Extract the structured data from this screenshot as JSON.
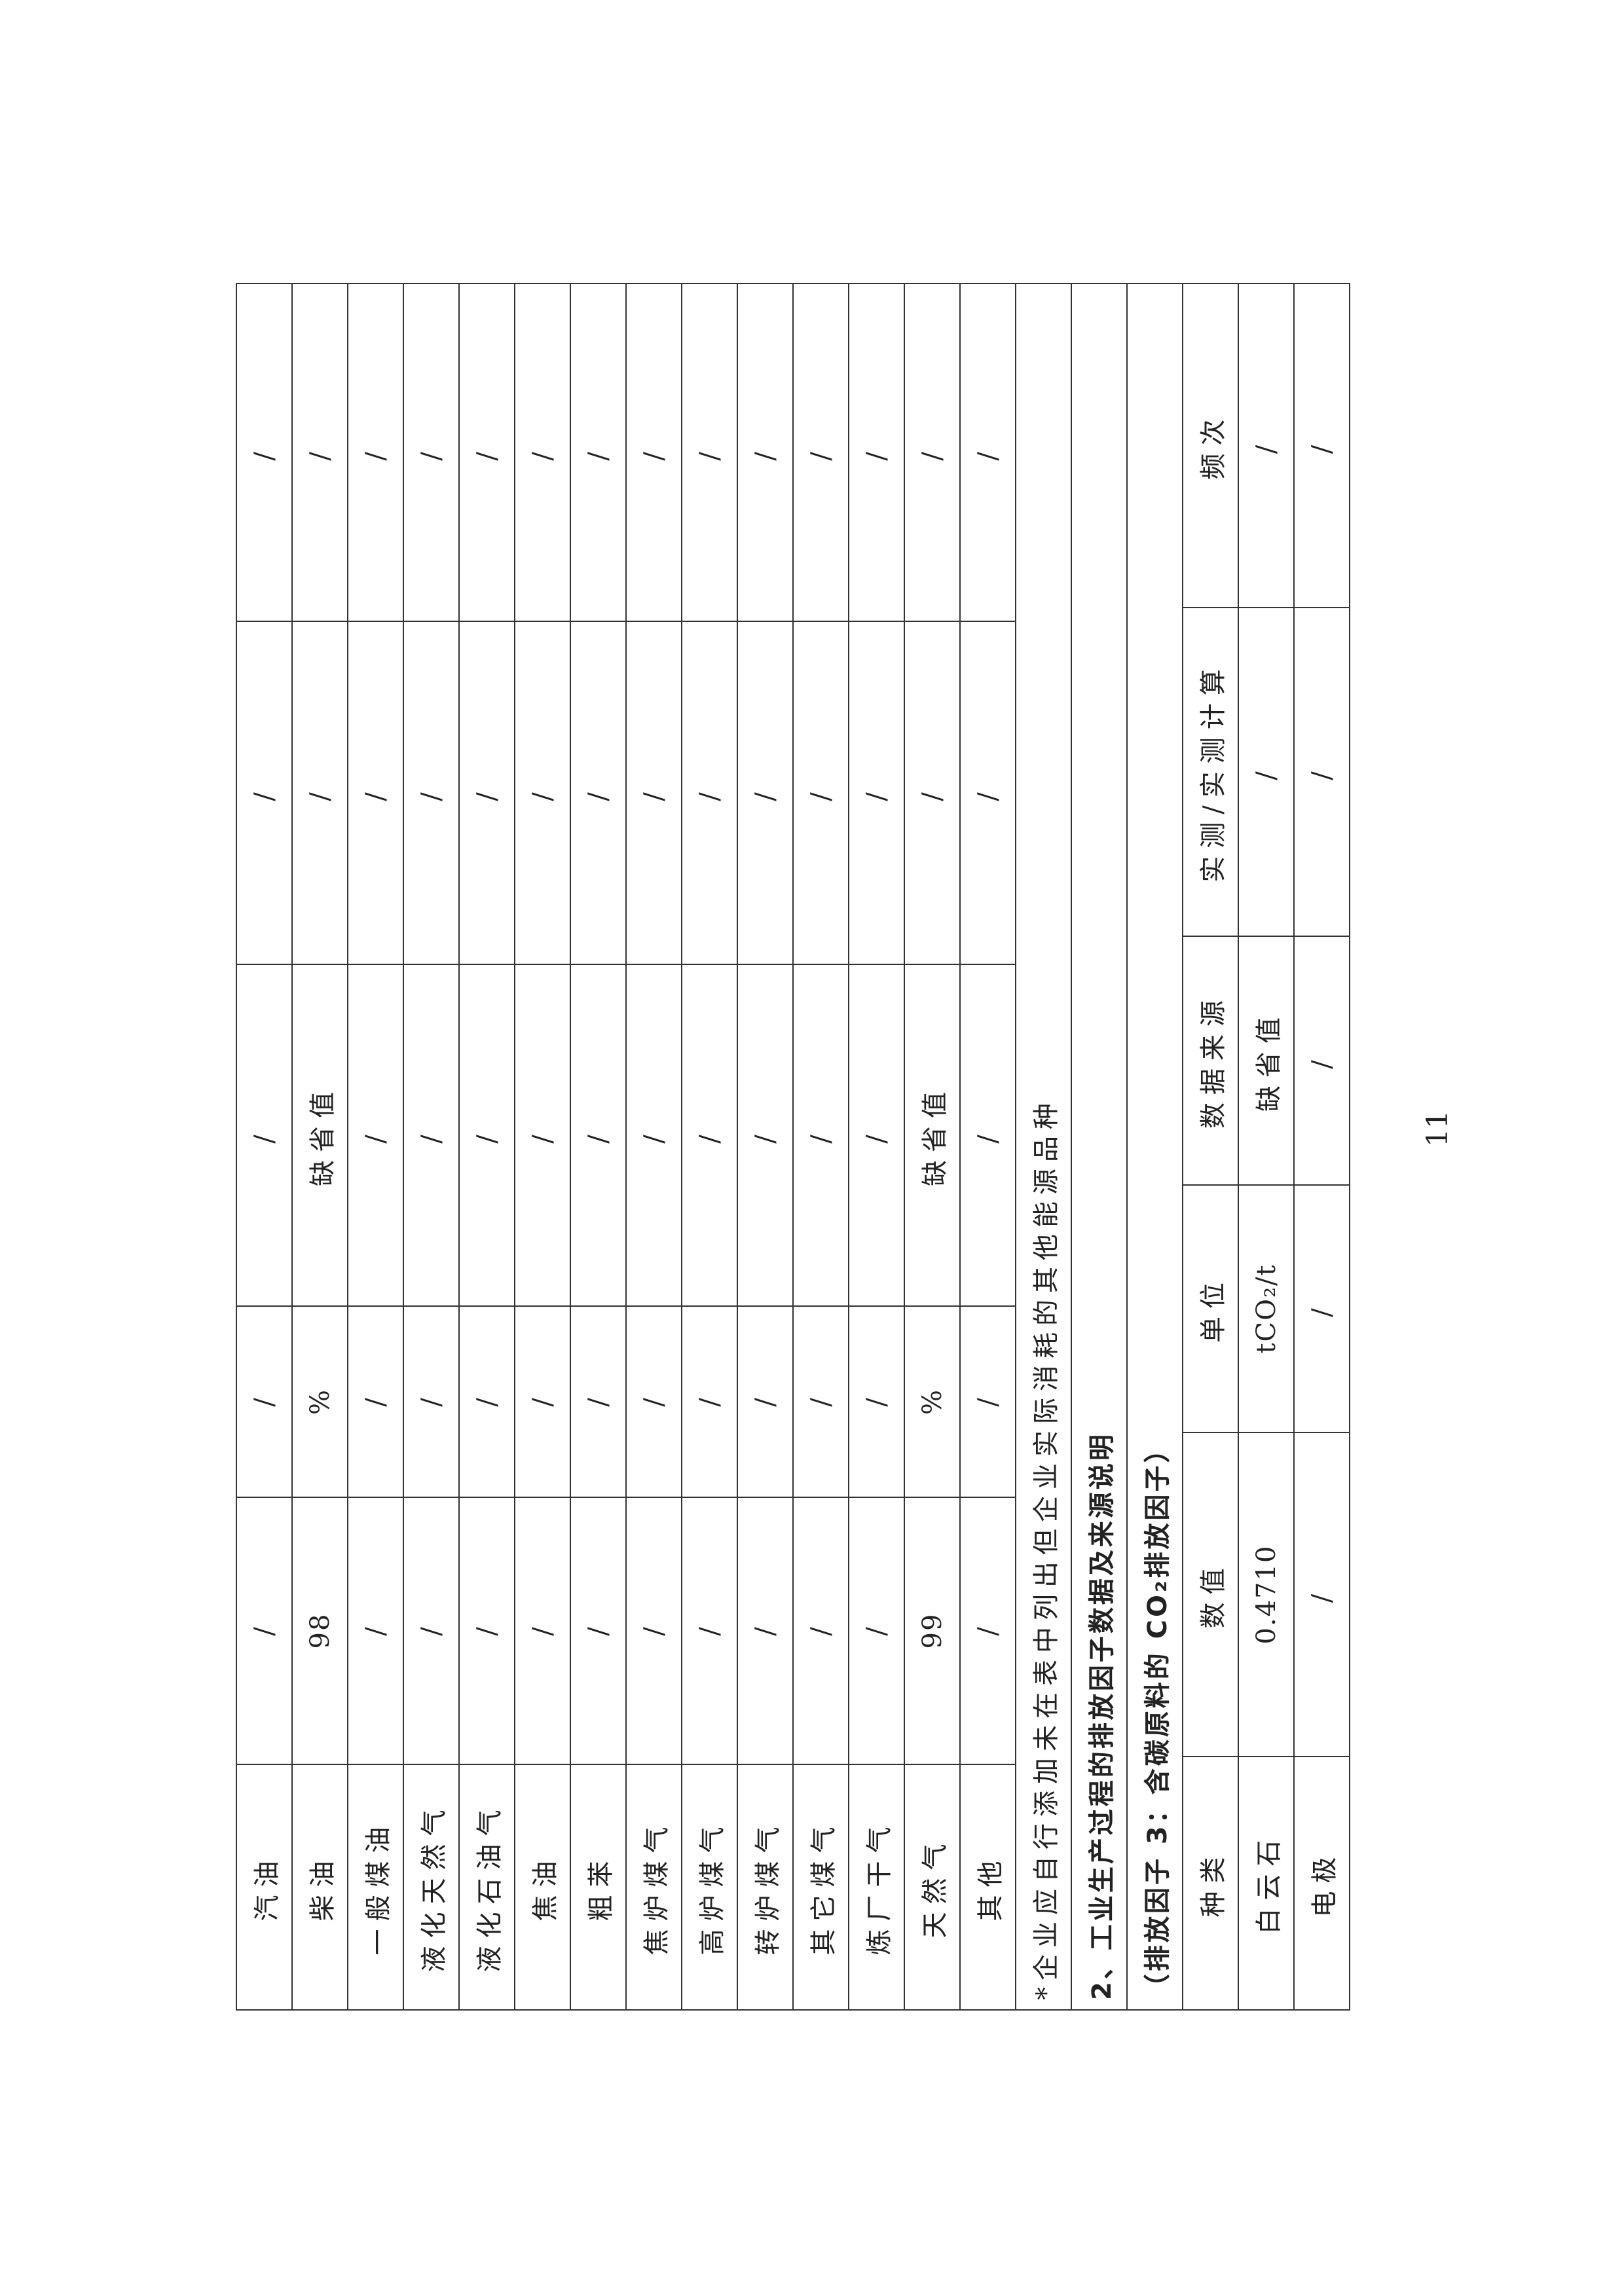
{
  "fuel_table": {
    "rows": [
      {
        "name": "汽油",
        "value": "/",
        "unit": "/",
        "source": "/",
        "measured": "/",
        "frequency": "/"
      },
      {
        "name": "柴油",
        "value": "98",
        "unit": "%",
        "source": "缺省值",
        "measured": "/",
        "frequency": "/"
      },
      {
        "name": "一般煤油",
        "value": "/",
        "unit": "/",
        "source": "/",
        "measured": "/",
        "frequency": "/"
      },
      {
        "name": "液化天然气",
        "value": "/",
        "unit": "/",
        "source": "/",
        "measured": "/",
        "frequency": "/"
      },
      {
        "name": "液化石油气",
        "value": "/",
        "unit": "/",
        "source": "/",
        "measured": "/",
        "frequency": "/"
      },
      {
        "name": "焦油",
        "value": "/",
        "unit": "/",
        "source": "/",
        "measured": "/",
        "frequency": "/"
      },
      {
        "name": "粗苯",
        "value": "/",
        "unit": "/",
        "source": "/",
        "measured": "/",
        "frequency": "/"
      },
      {
        "name": "焦炉煤气",
        "value": "/",
        "unit": "/",
        "source": "/",
        "measured": "/",
        "frequency": "/"
      },
      {
        "name": "高炉煤气",
        "value": "/",
        "unit": "/",
        "source": "/",
        "measured": "/",
        "frequency": "/"
      },
      {
        "name": "转炉煤气",
        "value": "/",
        "unit": "/",
        "source": "/",
        "measured": "/",
        "frequency": "/"
      },
      {
        "name": "其它煤气",
        "value": "/",
        "unit": "/",
        "source": "/",
        "measured": "/",
        "frequency": "/"
      },
      {
        "name": "炼厂干气",
        "value": "/",
        "unit": "/",
        "source": "/",
        "measured": "/",
        "frequency": "/"
      },
      {
        "name": "天然气",
        "value": "99",
        "unit": "%",
        "source": "缺省值",
        "measured": "/",
        "frequency": "/"
      },
      {
        "name": "其他",
        "value": "/",
        "unit": "/",
        "source": "/",
        "measured": "/",
        "frequency": "/"
      }
    ],
    "note": "*企业应自行添加未在表中列出但企业实际消耗的其他能源品种"
  },
  "section2": {
    "title": "2、工业生产过程的排放因子数据及来源说明",
    "subtitle": "（排放因子 3：含碳原料的 CO₂排放因子）",
    "headers": [
      "种类",
      "数值",
      "单位",
      "数据来源",
      "实测/实测计算",
      "频次"
    ],
    "rows": [
      [
        "白云石",
        "0.4710",
        "tCO₂/t",
        "缺省值",
        "/",
        "/"
      ],
      [
        "电极",
        "/",
        "/",
        "/",
        "/",
        "/"
      ]
    ]
  },
  "page_number": "11"
}
